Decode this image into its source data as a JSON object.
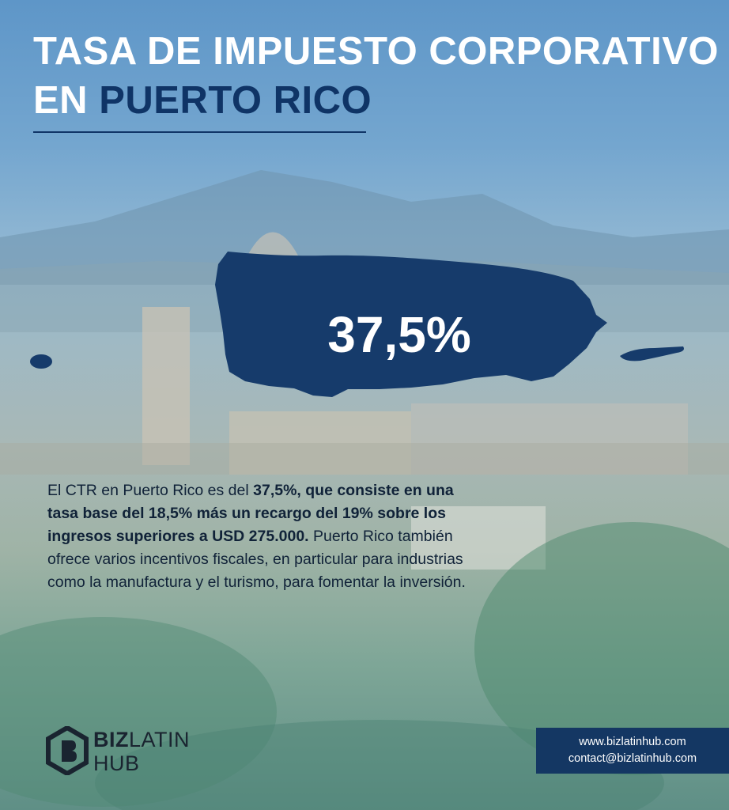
{
  "title": {
    "line1": "TASA DE IMPUESTO CORPORATIVO",
    "line2_prefix": "EN",
    "line2_accent": "PUERTO RICO"
  },
  "island": {
    "rate_label": "37,5%",
    "fill_color": "#163b6b"
  },
  "body": {
    "part1": "El CTR en Puerto Rico es del",
    "bold": "37,5%, que consiste en una tasa base del 18,5% más un recargo del 19% sobre los ingresos superiores a USD 275.000.",
    "part2": "Puerto Rico también ofrece varios incentivos fiscales, en particular para industrias como la manufactura y el turismo, para fomentar la inversión."
  },
  "logo": {
    "bold_word": "BIZ",
    "thin_word": "LATIN",
    "second_line": "HUB",
    "icon": "biz-latin-hub-logo-icon"
  },
  "contact": {
    "website": "www.bizlatinhub.com",
    "email": "contact@bizlatinhub.com"
  },
  "colors": {
    "navy": "#0f3466",
    "white": "#ffffff",
    "text_dark": "#102238"
  }
}
